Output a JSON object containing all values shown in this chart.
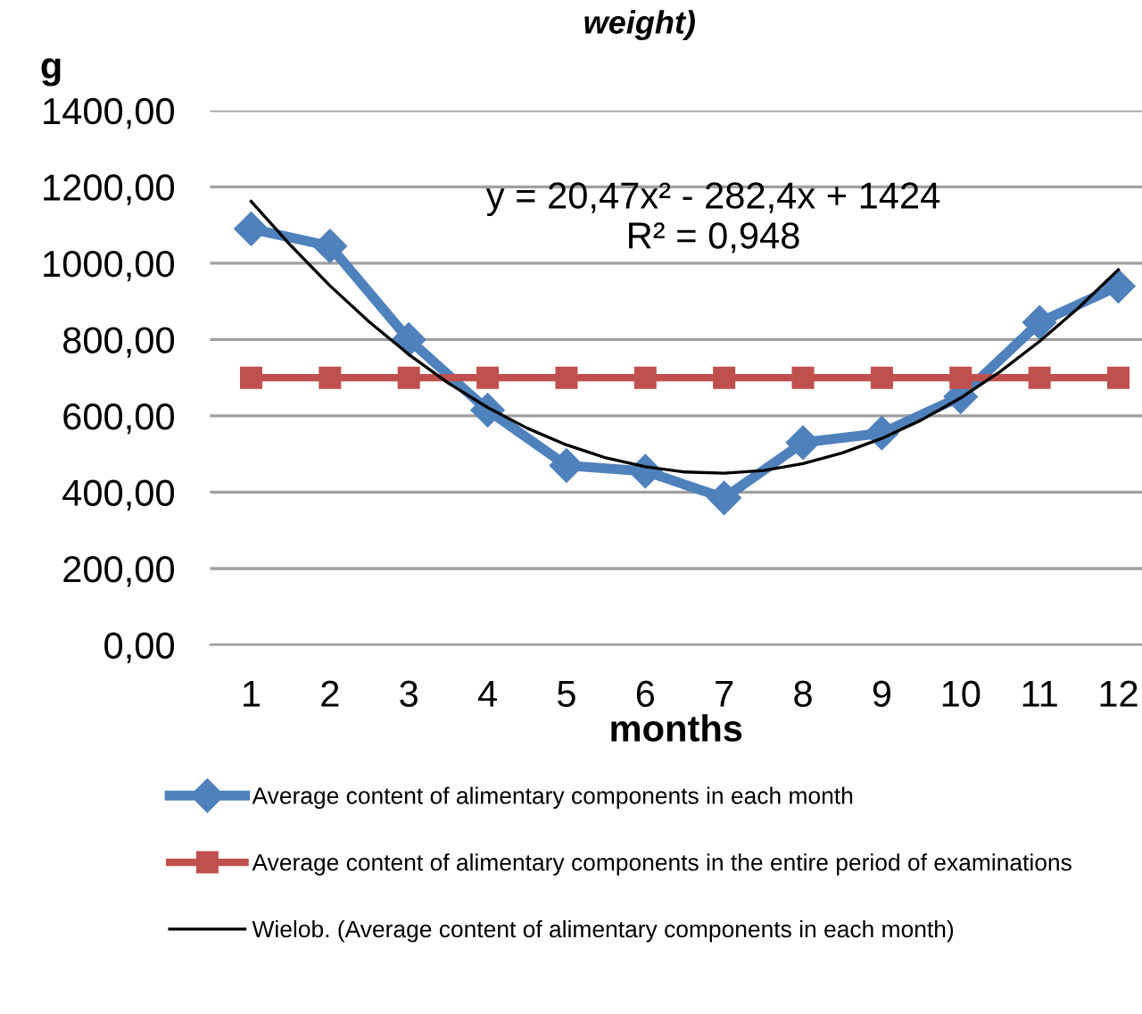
{
  "chart_data": {
    "type": "line",
    "title": "weight)",
    "ylabel": "g",
    "xlabel": "months",
    "x": [
      1,
      2,
      3,
      4,
      5,
      6,
      7,
      8,
      9,
      10,
      11,
      12
    ],
    "xlim": [
      0.48,
      12.3
    ],
    "xticks": [
      1,
      2,
      3,
      4,
      5,
      6,
      7,
      8,
      9,
      10,
      11,
      12
    ],
    "ylim": [
      0,
      1400
    ],
    "yticks": [
      {
        "value": 0,
        "label": "0,00"
      },
      {
        "value": 200,
        "label": "200,00"
      },
      {
        "value": 400,
        "label": "400,00"
      },
      {
        "value": 600,
        "label": "600,00"
      },
      {
        "value": 800,
        "label": "800,00"
      },
      {
        "value": 1000,
        "label": "1000,00"
      },
      {
        "value": 1200,
        "label": "1200,00"
      },
      {
        "value": 1400,
        "label": "1400,00"
      }
    ],
    "grid": "y",
    "legend": "bottom",
    "series": [
      {
        "name": "Average content of alimentary components in each month",
        "color": "#4f81bd",
        "marker": "diamond",
        "values": [
          1090,
          1045,
          800,
          615,
          470,
          455,
          385,
          530,
          555,
          650,
          845,
          940
        ]
      },
      {
        "name": "Average content of alimentary components in the entire period of examinations",
        "color": "#c0504d",
        "marker": "square",
        "values": [
          700,
          700,
          700,
          700,
          700,
          700,
          700,
          700,
          700,
          700,
          700,
          700
        ]
      },
      {
        "name": "Wielob. (Average content of alimentary components in each month)",
        "color": "#000000",
        "marker": "none",
        "x": [
          1,
          1.5,
          2,
          2.5,
          3,
          3.5,
          4,
          4.5,
          5,
          5.5,
          6,
          6.5,
          7,
          7.5,
          8,
          8.5,
          9,
          9.5,
          10,
          10.5,
          11,
          11.5,
          12
        ],
        "values": [
          1162,
          1047,
          941,
          846,
          761,
          686,
          622,
          568,
          524,
          490,
          467,
          453,
          450,
          457,
          475,
          503,
          541,
          589,
          647,
          716,
          795,
          884,
          983
        ]
      }
    ],
    "annotations": [
      "y = 20,47x² - 282,4x + 1424",
      "R² = 0,948"
    ]
  }
}
